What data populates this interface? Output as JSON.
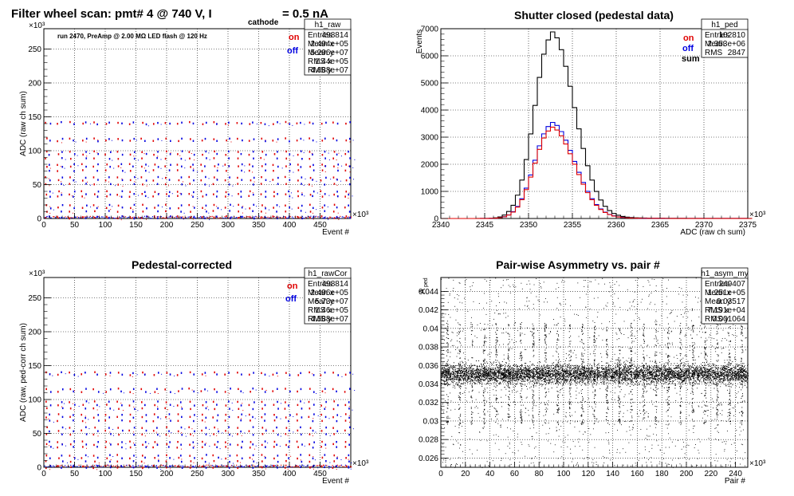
{
  "header": {
    "title_main": "Filter wheel scan: pmt#   4 @   740 V, I",
    "title_sub": "cathode",
    "title_tail": "= 0.5 nA"
  },
  "chart_data": [
    {
      "id": "p1",
      "type": "scatter",
      "title": "",
      "annotation": "run 2470, PreAmp @ 2.00 MΩ   LED flash @  120 Hz",
      "xlabel": "Event #",
      "ylabel": "ADC (raw ch sum)",
      "x_exponent": "×10³",
      "y_exponent": "×10³",
      "xlim": [
        0,
        500
      ],
      "ylim": [
        0,
        280
      ],
      "xticks": [
        "0",
        "50",
        "100",
        "150",
        "200",
        "250",
        "300",
        "350",
        "400",
        "450"
      ],
      "yticks": [
        "0",
        "50",
        "100",
        "150",
        "200",
        "250"
      ],
      "legend": [
        {
          "label": "on",
          "color": "#e00000"
        },
        {
          "label": "off",
          "color": "#0000e0"
        }
      ],
      "grid": true,
      "stats": {
        "name": "h1_raw",
        "rows": [
          [
            "Entries",
            "498814"
          ],
          [
            "Mean x",
            "2.494e+05"
          ],
          [
            "Mean y",
            "5.296e+07"
          ],
          [
            "RMS x",
            "1.44e+05"
          ],
          [
            "RMS y",
            "4.688e+07"
          ]
        ]
      },
      "levels": [
        143,
        141,
        119,
        116,
        100,
        96,
        90,
        81,
        78,
        72,
        62,
        58,
        52,
        41,
        37,
        34,
        21,
        17,
        12,
        4,
        2
      ],
      "period": 19.5,
      "levels_upper_limit": 150
    },
    {
      "id": "p2",
      "type": "line",
      "title": "Shutter closed (pedestal data)",
      "xlabel": "ADC (raw ch sum)",
      "ylabel": "Events",
      "x_exponent": "×10³",
      "xlim": [
        2340,
        2375
      ],
      "ylim": [
        0,
        7000
      ],
      "xticks": [
        "2340",
        "2345",
        "2350",
        "2355",
        "2360",
        "2365",
        "2370",
        "2375"
      ],
      "yticks": [
        "0",
        "1000",
        "2000",
        "3000",
        "4000",
        "5000",
        "6000",
        "7000"
      ],
      "legend": [
        {
          "label": "on",
          "color": "#e00000"
        },
        {
          "label": "off",
          "color": "#0000e0"
        },
        {
          "label": "sum",
          "color": "#000000"
        }
      ],
      "grid": true,
      "stats": {
        "name": "h1_ped",
        "rows": [
          [
            "Entries",
            "102810"
          ],
          [
            "Mean",
            "2.353e+06"
          ],
          [
            "RMS",
            "2847"
          ]
        ]
      },
      "series": [
        {
          "name": "sum",
          "color": "#000000",
          "peak": 6700,
          "mean": 2352.6,
          "sigma_left": 1.9,
          "sigma_right": 2.6
        },
        {
          "name": "off",
          "color": "#0000e0",
          "peak": 3450,
          "mean": 2352.6,
          "sigma_left": 1.9,
          "sigma_right": 2.6
        },
        {
          "name": "on",
          "color": "#e00000",
          "peak": 3280,
          "mean": 2352.6,
          "sigma_left": 1.9,
          "sigma_right": 2.6
        }
      ]
    },
    {
      "id": "p3",
      "type": "scatter",
      "title": "Pedestal-corrected",
      "xlabel": "Event #",
      "ylabel": "ADC (raw, ped-corr ch sum)",
      "x_exponent": "×10³",
      "y_exponent": "×10³",
      "xlim": [
        0,
        500
      ],
      "ylim": [
        0,
        280
      ],
      "xticks": [
        "0",
        "50",
        "100",
        "150",
        "200",
        "250",
        "300",
        "350",
        "400",
        "450"
      ],
      "yticks": [
        "0",
        "50",
        "100",
        "150",
        "200",
        "250"
      ],
      "legend": [
        {
          "label": "on",
          "color": "#e00000"
        },
        {
          "label": "off",
          "color": "#0000e0"
        }
      ],
      "grid": true,
      "stats": {
        "name": "h1_rawCor",
        "rows": [
          [
            "Entries",
            "498814"
          ],
          [
            "Mean x",
            "2.496e+05"
          ],
          [
            "Mean y",
            "5.73e+07"
          ],
          [
            "RMS x",
            "1.46e+05"
          ],
          [
            "RMS y",
            "4.588e+07"
          ]
        ]
      },
      "levels": [
        141,
        138,
        117,
        113,
        98,
        93,
        88,
        79,
        75,
        70,
        60,
        55,
        50,
        39,
        35,
        31,
        19,
        15,
        10,
        3,
        1
      ],
      "period": 19.5,
      "levels_upper_limit": 150
    },
    {
      "id": "p4",
      "type": "scatter",
      "title": "Pair-wise Asymmetry vs. pair #",
      "xlabel": "Pair #",
      "ylabel": "A",
      "ylabel_sub": "ped",
      "x_exponent": "×10³",
      "xlim": [
        0,
        250
      ],
      "ylim": [
        0.025,
        0.0455
      ],
      "xticks": [
        "0",
        "20",
        "40",
        "60",
        "80",
        "100",
        "120",
        "140",
        "160",
        "180",
        "200",
        "220",
        "240"
      ],
      "yticks": [
        "0.026",
        "0.028",
        "0.03",
        "0.032",
        "0.034",
        "0.036",
        "0.038",
        "0.04",
        "0.042",
        "0.044"
      ],
      "grid": true,
      "stats": {
        "name": "h1_asym_my",
        "rows": [
          [
            "Entries",
            "249407"
          ],
          [
            "Mean x",
            "1.251e+05"
          ],
          [
            "Mean y",
            "0.03517"
          ],
          [
            "RMS x",
            "7.191e+04"
          ],
          [
            "RMS y",
            "0.001064"
          ]
        ]
      },
      "band_center": 0.0351,
      "band_halfwidth": 0.0009,
      "spike_period": 10
    }
  ]
}
